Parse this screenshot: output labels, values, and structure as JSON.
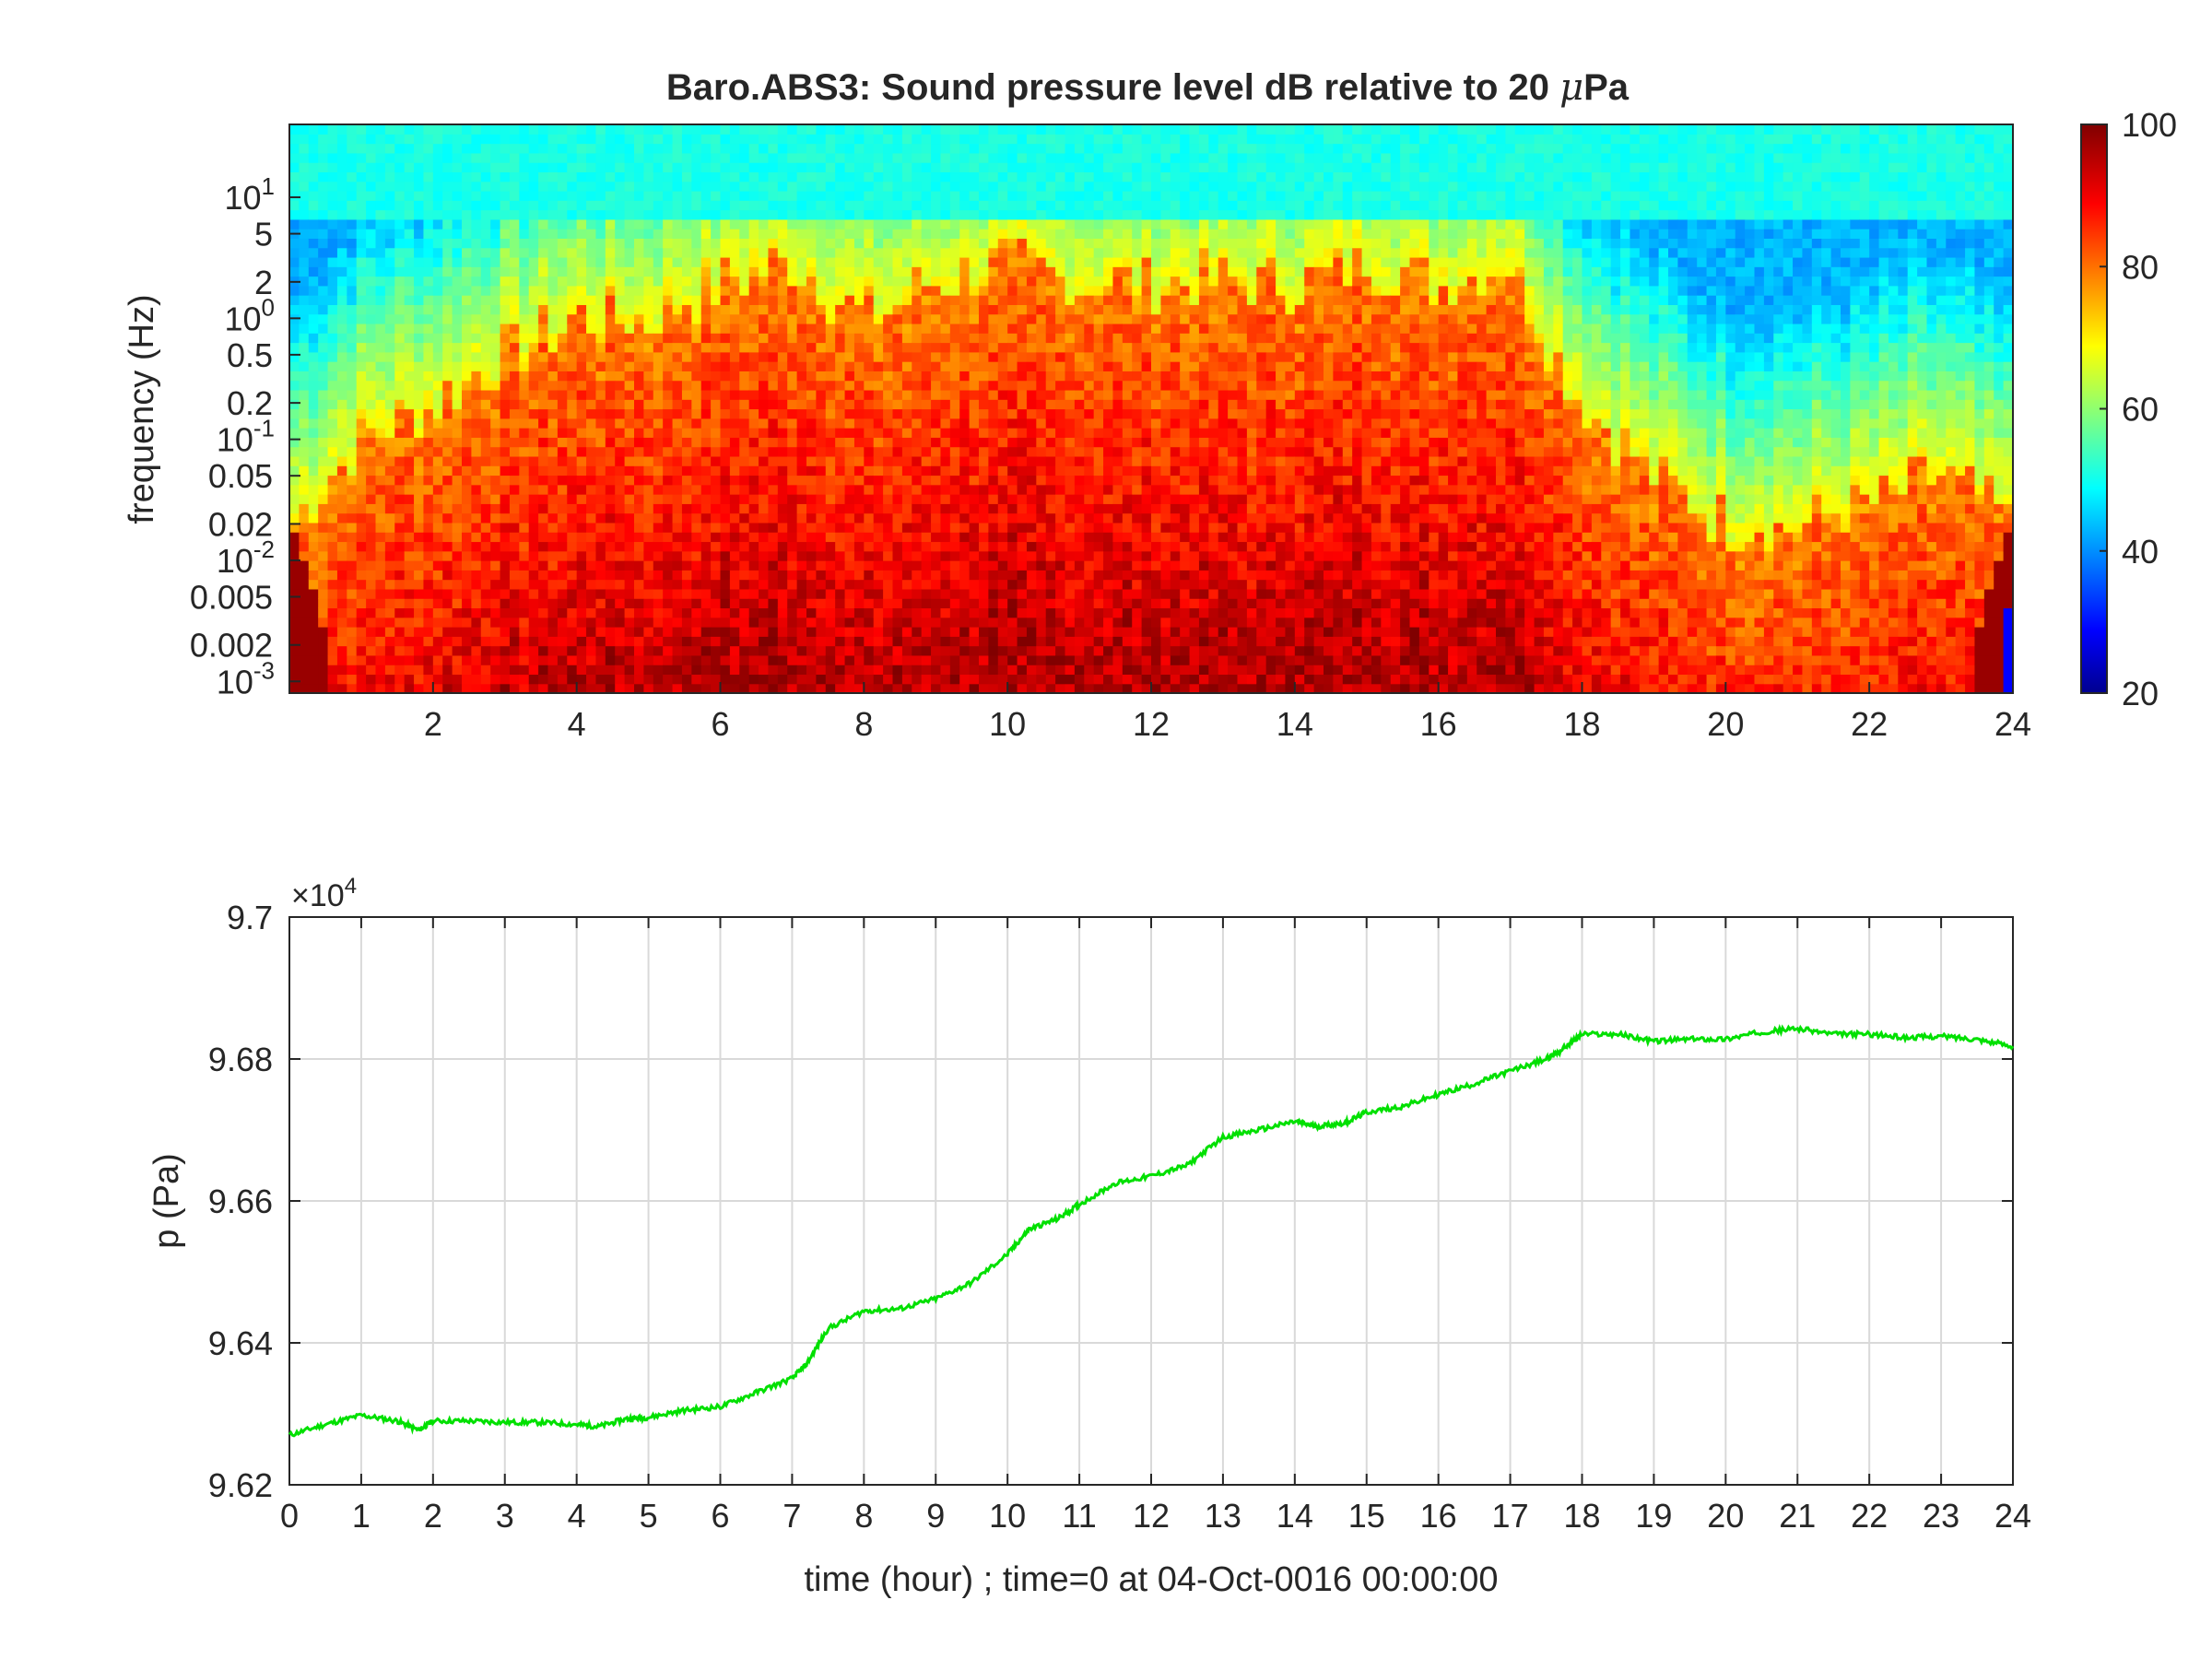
{
  "chart_data": [
    {
      "type": "heatmap",
      "title": "Baro.ABS3: Sound pressure level dB relative to 20 μPa",
      "title_main": "Baro.ABS3: Sound pressure level dB relative to 20 ",
      "title_mu": "μ",
      "title_tail": "Pa",
      "ylabel": "frequency (Hz)",
      "xlabel": "",
      "xlim": [
        0,
        24
      ],
      "ylim_hz": [
        0.0008,
        40
      ],
      "y_scale": "log",
      "x_ticks": [
        "2",
        "4",
        "6",
        "8",
        "10",
        "12",
        "14",
        "16",
        "18",
        "20",
        "22",
        "24"
      ],
      "y_ticks": [
        {
          "value": 10,
          "label": "10",
          "exp": "1"
        },
        {
          "value": 5,
          "label": "5",
          "exp": ""
        },
        {
          "value": 2,
          "label": "2",
          "exp": ""
        },
        {
          "value": 1,
          "label": "10",
          "exp": "0"
        },
        {
          "value": 0.5,
          "label": "0.5",
          "exp": ""
        },
        {
          "value": 0.2,
          "label": "0.2",
          "exp": ""
        },
        {
          "value": 0.1,
          "label": "10",
          "exp": "-1"
        },
        {
          "value": 0.05,
          "label": "0.05",
          "exp": ""
        },
        {
          "value": 0.02,
          "label": "0.02",
          "exp": ""
        },
        {
          "value": 0.01,
          "label": "10",
          "exp": "-2"
        },
        {
          "value": 0.005,
          "label": "0.005",
          "exp": ""
        },
        {
          "value": 0.002,
          "label": "0.002",
          "exp": ""
        },
        {
          "value": 0.001,
          "label": "10",
          "exp": "-3"
        }
      ],
      "colorbar": {
        "range": [
          20,
          100
        ],
        "ticks": [
          "20",
          "40",
          "60",
          "80",
          "100"
        ],
        "colormap": "jet"
      },
      "level_profile": {
        "time_hour": [
          0,
          1,
          2,
          3,
          4,
          5,
          6,
          7,
          8,
          9,
          10,
          11,
          12,
          13,
          14,
          15,
          16,
          17,
          18,
          19,
          20,
          21,
          22,
          23,
          24
        ],
        "high_energy_top_hz": [
          0.02,
          0.1,
          0.2,
          0.5,
          1,
          1,
          2,
          3,
          1,
          2,
          3,
          2,
          2,
          2,
          2,
          3,
          2,
          3,
          0.2,
          0.05,
          0.02,
          0.02,
          0.03,
          0.05,
          0.02
        ]
      }
    },
    {
      "type": "line",
      "title": "",
      "ylabel": "p (Pa)",
      "xlabel": "time (hour) ; time=0 at 04-Oct-0016 00:00:00",
      "exponent_label": "×10",
      "exponent_power": "4",
      "xlim": [
        0,
        24
      ],
      "ylim": [
        9.62,
        9.7
      ],
      "grid": true,
      "x_ticks": [
        "0",
        "1",
        "2",
        "3",
        "4",
        "5",
        "6",
        "7",
        "8",
        "9",
        "10",
        "11",
        "12",
        "13",
        "14",
        "15",
        "16",
        "17",
        "18",
        "19",
        "20",
        "21",
        "22",
        "23",
        "24"
      ],
      "y_ticks": [
        "9.62",
        "9.64",
        "9.66",
        "9.68",
        "9.7"
      ],
      "series": [
        {
          "color": "#00e000",
          "x": [
            0,
            0.5,
            1,
            1.5,
            1.8,
            2,
            2.5,
            3,
            3.5,
            4,
            4.3,
            4.7,
            5,
            5.5,
            6,
            6.5,
            7,
            7.2,
            7.5,
            8,
            8.5,
            9,
            9.5,
            10,
            10.3,
            10.7,
            11,
            11.5,
            12,
            12.5,
            13,
            13.5,
            14,
            14.3,
            14.7,
            15,
            15.5,
            16,
            16.5,
            17,
            17.5,
            17.7,
            18,
            18.5,
            19,
            19.5,
            20,
            20.5,
            21,
            21.5,
            22,
            22.5,
            23,
            23.5,
            24
          ],
          "y": [
            9.627,
            9.6285,
            9.6298,
            9.629,
            9.6277,
            9.629,
            9.629,
            9.6288,
            9.6288,
            9.6285,
            9.6282,
            9.6293,
            9.6295,
            9.6305,
            9.631,
            9.633,
            9.635,
            9.637,
            9.642,
            9.6445,
            9.6448,
            9.6462,
            9.6485,
            9.6525,
            9.656,
            9.6575,
            9.6595,
            9.6625,
            9.6635,
            9.665,
            9.669,
            9.67,
            9.6712,
            9.6705,
            9.671,
            9.6725,
            9.6733,
            9.675,
            9.6765,
            9.6783,
            9.68,
            9.6812,
            9.6835,
            9.6835,
            9.6825,
            9.6828,
            9.6828,
            9.6838,
            9.6843,
            9.6835,
            9.6835,
            9.683,
            9.6832,
            9.6828,
            9.6818
          ]
        }
      ]
    }
  ]
}
